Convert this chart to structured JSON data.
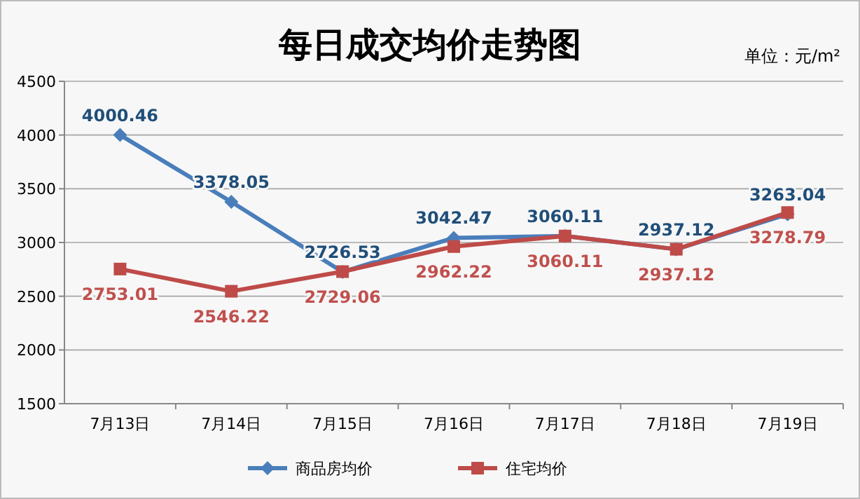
{
  "chart_data": {
    "type": "line",
    "title": "每日成交均价走势图",
    "annotations": [
      "单位：元/m²"
    ],
    "categories": [
      "7月13日",
      "7月14日",
      "7月15日",
      "7月16日",
      "7月17日",
      "7月18日",
      "7月19日"
    ],
    "series": [
      {
        "name": "商品房均价",
        "color": "#4a7ebb",
        "marker": "diamond",
        "values": [
          4000.46,
          3378.05,
          2726.53,
          3042.47,
          3060.11,
          2937.12,
          3263.04
        ]
      },
      {
        "name": "住宅均价",
        "color": "#be4b48",
        "marker": "square",
        "values": [
          2753.01,
          2546.22,
          2729.06,
          2962.22,
          3060.11,
          2937.12,
          3278.79
        ]
      }
    ],
    "ylim": [
      1500,
      4500
    ],
    "yticks": [
      1500,
      2000,
      2500,
      3000,
      3500,
      4000,
      4500
    ],
    "grid": "y",
    "legend": "bottom",
    "data_labels": true,
    "line_style": "solid"
  }
}
